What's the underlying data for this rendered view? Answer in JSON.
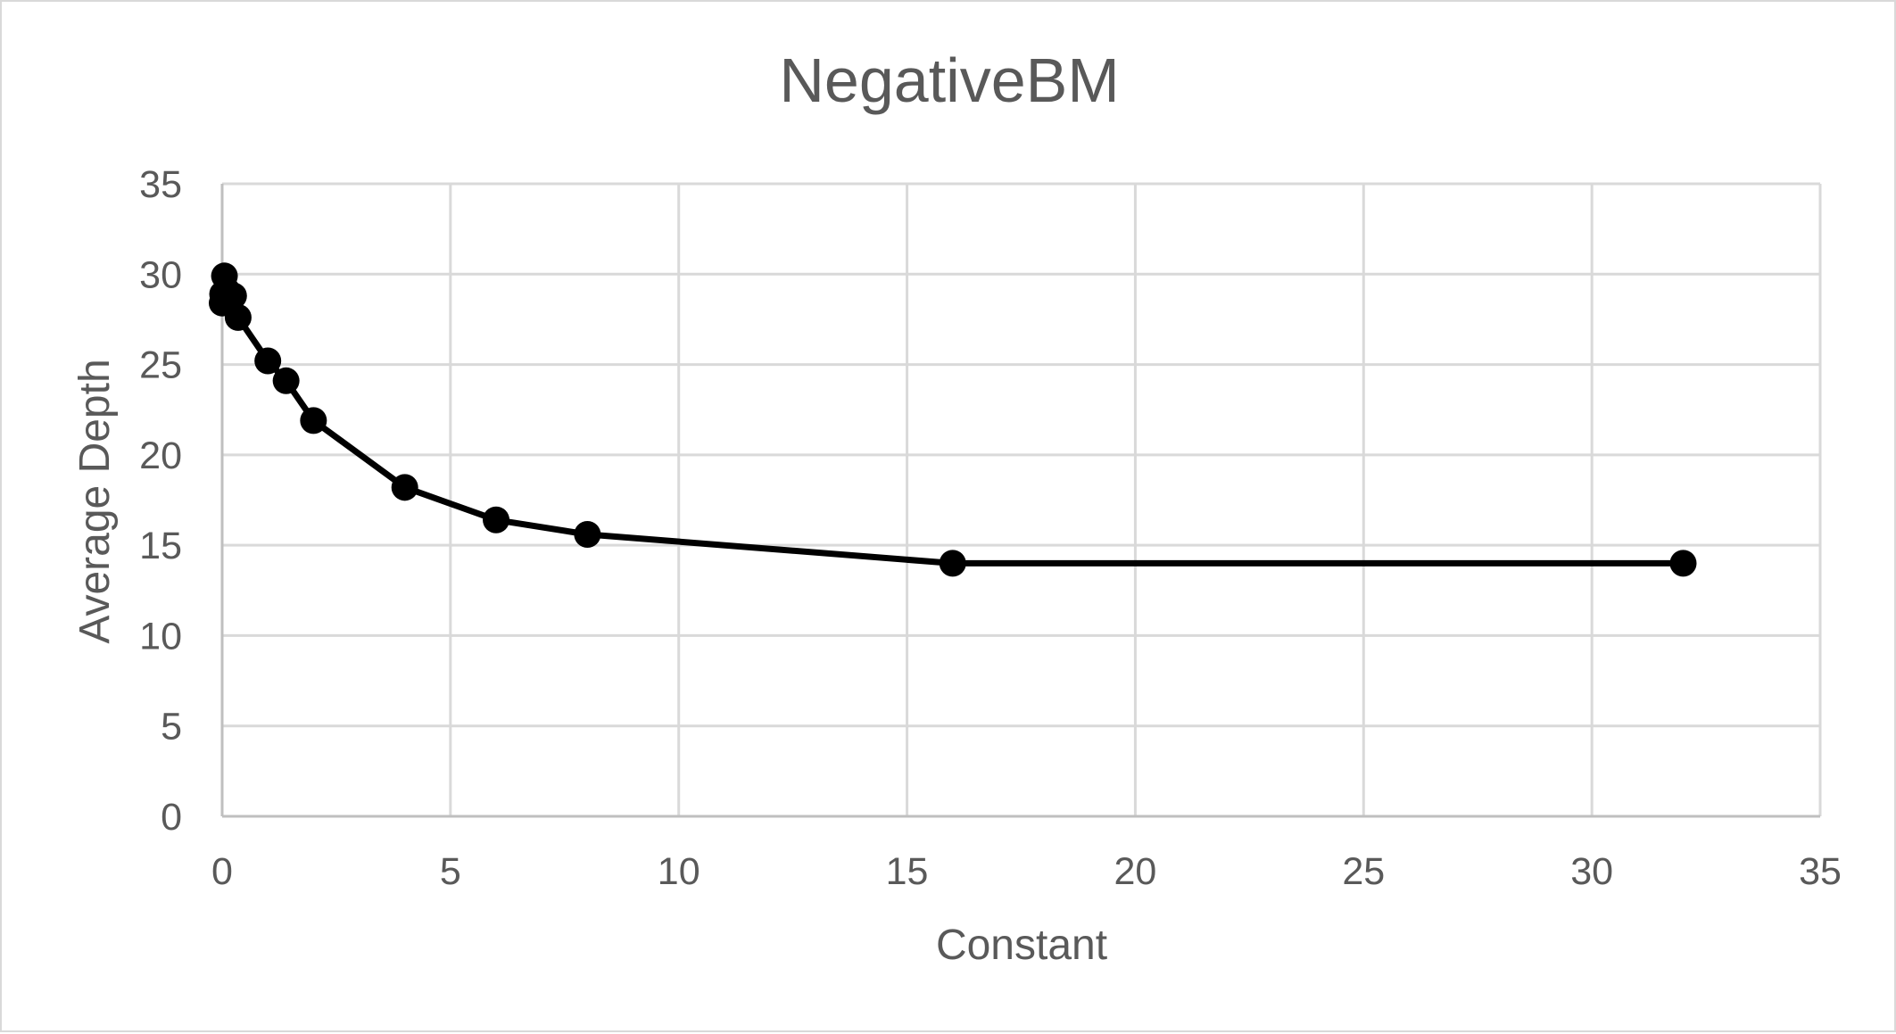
{
  "chart_data": {
    "type": "scatter",
    "title": "NegativeBM",
    "xlabel": "Constant",
    "ylabel": "Average Depth",
    "xlim": [
      0,
      35
    ],
    "ylim": [
      0,
      35
    ],
    "x_ticks": [
      0,
      5,
      10,
      15,
      20,
      25,
      30,
      35
    ],
    "y_ticks": [
      0,
      5,
      10,
      15,
      20,
      25,
      30,
      35
    ],
    "grid": true,
    "legend": "none",
    "line_color": "#000000",
    "series": [
      {
        "x": [
          0.0,
          0.01,
          0.05,
          0.1,
          0.25,
          0.35,
          1,
          1.4,
          2,
          4,
          6,
          8,
          16,
          32
        ],
        "y": [
          28.4,
          28.9,
          29.9,
          29.1,
          28.8,
          27.6,
          25.2,
          24.1,
          21.9,
          18.2,
          16.4,
          15.6,
          14.0,
          14.0
        ]
      }
    ]
  }
}
